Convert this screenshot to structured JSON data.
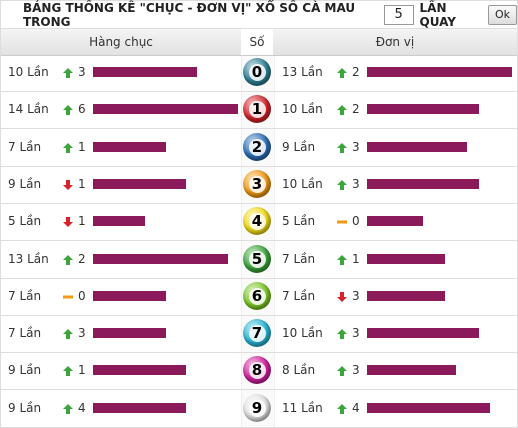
{
  "header": {
    "title": "BẢNG THỐNG KÊ \"CHỤC - ĐƠN VỊ\" XỔ SỐ CÀ MAU TRONG",
    "draws": "5",
    "suffix": "LẦN QUAY",
    "button": "Ok"
  },
  "table": {
    "columns": [
      "Hàng chục",
      "Số",
      "Đơn vị"
    ],
    "bar_color": "#8b1a5a",
    "rows": [
      {
        "digit": "0",
        "ball_color": "#2f7f96",
        "left": {
          "count": {
            "value": 10,
            "label": "10 Lần"
          },
          "trend": "up",
          "change": 3
        },
        "right": {
          "count": {
            "value": 13,
            "label": "13 Lần"
          },
          "trend": "up",
          "change": 2
        }
      },
      {
        "digit": "1",
        "ball_color": "#d4232a",
        "left": {
          "count": {
            "value": 14,
            "label": "14 Lần"
          },
          "trend": "up",
          "change": 6
        },
        "right": {
          "count": {
            "value": 10,
            "label": "10 Lần"
          },
          "trend": "up",
          "change": 2
        }
      },
      {
        "digit": "2",
        "ball_color": "#2a6db8",
        "left": {
          "count": {
            "value": 7,
            "label": "7 Lần"
          },
          "trend": "up",
          "change": 1
        },
        "right": {
          "count": {
            "value": 9,
            "label": "9 Lần"
          },
          "trend": "up",
          "change": 3
        }
      },
      {
        "digit": "3",
        "ball_color": "#f39a12",
        "left": {
          "count": {
            "value": 9,
            "label": "9 Lần"
          },
          "trend": "down",
          "change": 1
        },
        "right": {
          "count": {
            "value": 10,
            "label": "10 Lần"
          },
          "trend": "up",
          "change": 3
        }
      },
      {
        "digit": "4",
        "ball_color": "#f2dc17",
        "left": {
          "count": {
            "value": 5,
            "label": "5 Lần"
          },
          "trend": "down",
          "change": 1
        },
        "right": {
          "count": {
            "value": 5,
            "label": "5 Lần"
          },
          "trend": "same",
          "change": 0
        }
      },
      {
        "digit": "5",
        "ball_color": "#3aa53a",
        "left": {
          "count": {
            "value": 13,
            "label": "13 Lần"
          },
          "trend": "up",
          "change": 2
        },
        "right": {
          "count": {
            "value": 7,
            "label": "7 Lần"
          },
          "trend": "up",
          "change": 1
        }
      },
      {
        "digit": "6",
        "ball_color": "#7cc825",
        "left": {
          "count": {
            "value": 7,
            "label": "7 Lần"
          },
          "trend": "same",
          "change": 0
        },
        "right": {
          "count": {
            "value": 7,
            "label": "7 Lần"
          },
          "trend": "down",
          "change": 3
        }
      },
      {
        "digit": "7",
        "ball_color": "#28b5d8",
        "left": {
          "count": {
            "value": 7,
            "label": "7 Lần"
          },
          "trend": "up",
          "change": 3
        },
        "right": {
          "count": {
            "value": 10,
            "label": "10 Lần"
          },
          "trend": "up",
          "change": 3
        }
      },
      {
        "digit": "8",
        "ball_color": "#d01f9c",
        "left": {
          "count": {
            "value": 9,
            "label": "9 Lần"
          },
          "trend": "up",
          "change": 1
        },
        "right": {
          "count": {
            "value": 8,
            "label": "8 Lần"
          },
          "trend": "up",
          "change": 3
        }
      },
      {
        "digit": "9",
        "ball_color": "#e4e4e4",
        "left": {
          "count": {
            "value": 9,
            "label": "9 Lần"
          },
          "trend": "up",
          "change": 4
        },
        "right": {
          "count": {
            "value": 11,
            "label": "11 Lần"
          },
          "trend": "up",
          "change": 4
        }
      }
    ]
  }
}
